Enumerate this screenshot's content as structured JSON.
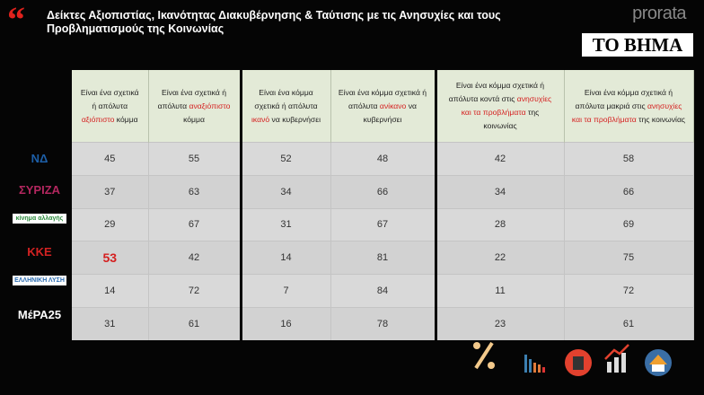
{
  "header": {
    "title": "Δείκτες Αξιοπιστίας, Ικανότητας Διακυβέρνησης & Ταύτισης με τις Ανησυχίες και τους Προβληματισμούς της Κοινωνίας",
    "brand": "prorata",
    "newspaper": "ΤΟ ΒΗΜΑ"
  },
  "table": {
    "columns": [
      [
        "Είναι ένα σχετικά ή απόλυτα ",
        "αξιόπιστο",
        " κόμμα"
      ],
      [
        "Είναι ένα σχετικά ή απόλυτα ",
        "αναξιόπιστο",
        " κόμμα"
      ],
      [
        "Είναι ένα κόμμα σχετικά ή απόλυτα ",
        "ικανό",
        " να κυβερνήσει"
      ],
      [
        "Είναι ένα κόμμα σχετικά ή απόλυτα ",
        "ανίκανο",
        " να κυβερνήσει"
      ],
      [
        "Είναι ένα κόμμα σχετικά ή απόλυτα κοντά στις ",
        "ανησυχίες και τα προβλήματα",
        " της κοινωνίας"
      ],
      [
        "Είναι ένα κόμμα σχετικά ή απόλυτα μακριά στις ",
        "ανησυχίες και τα προβλήματα",
        " της κοινωνίας"
      ]
    ],
    "parties": [
      "ΝΔ",
      "ΣΥΡΙΖΑ",
      "κίνημα αλλαγής",
      "ΚΚΕ",
      "ΕΛΛΗΝΙΚΗ ΛΥΣΗ",
      "ΜέΡΑ25"
    ],
    "rows": [
      [
        45,
        55,
        52,
        48,
        42,
        58
      ],
      [
        37,
        63,
        34,
        66,
        34,
        66
      ],
      [
        29,
        67,
        31,
        67,
        28,
        69
      ],
      [
        53,
        42,
        14,
        81,
        22,
        75
      ],
      [
        14,
        72,
        7,
        84,
        11,
        72
      ],
      [
        31,
        61,
        16,
        78,
        23,
        61
      ]
    ]
  }
}
